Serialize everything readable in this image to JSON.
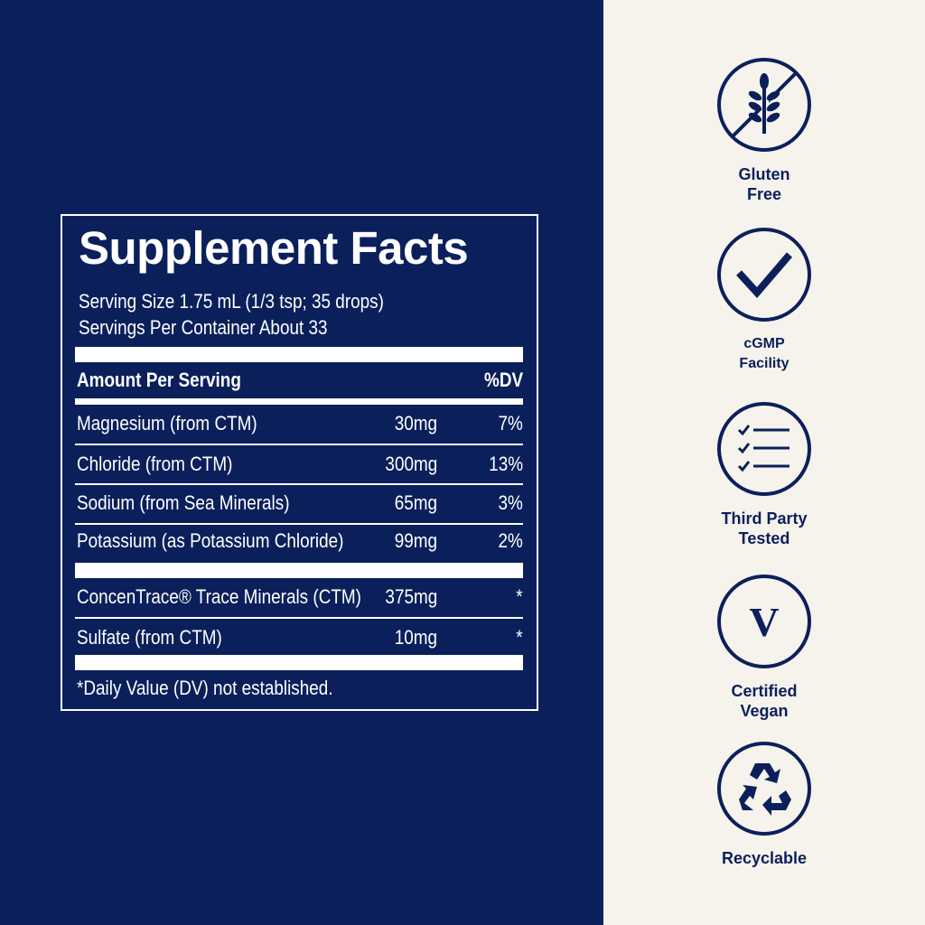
{
  "facts": {
    "title": "Supplement Facts",
    "serving_size": "Serving Size 1.75 mL (1/3 tsp; 35 drops)",
    "servings_per_container": "Servings Per Container About 33",
    "header_amount": "Amount Per Serving",
    "header_dv": "%DV",
    "rows": [
      {
        "name": "Magnesium (from CTM)",
        "amount": "30mg",
        "dv": "7%"
      },
      {
        "name": "Chloride (from CTM)",
        "amount": "300mg",
        "dv": "13%"
      },
      {
        "name": "Sodium (from Sea Minerals)",
        "amount": "65mg",
        "dv": "3%"
      },
      {
        "name": "Potassium (as Potassium Chloride)",
        "amount": "99mg",
        "dv": "2%"
      }
    ],
    "rows2": [
      {
        "name": "ConcenTrace® Trace Minerals (CTM)",
        "amount": "375mg",
        "dv": "*"
      },
      {
        "name": "Sulfate (from CTM)",
        "amount": "10mg",
        "dv": "*"
      }
    ],
    "footnote": "*Daily Value (DV) not established."
  },
  "badges": [
    {
      "icon": "gluten-free-icon",
      "line1": "Gluten",
      "line2": "Free"
    },
    {
      "icon": "checkmark-icon",
      "line1": "cGMP",
      "line2": "Facility"
    },
    {
      "icon": "checklist-icon",
      "line1": "Third Party",
      "line2": "Tested"
    },
    {
      "icon": "vegan-v-icon",
      "line1": "Certified",
      "line2": "Vegan",
      "glyph": "V"
    },
    {
      "icon": "recycle-icon",
      "line1": "Recyclable",
      "line2": ""
    }
  ],
  "colors": {
    "navy": "#0b205b",
    "cream": "#f6f2ec"
  }
}
